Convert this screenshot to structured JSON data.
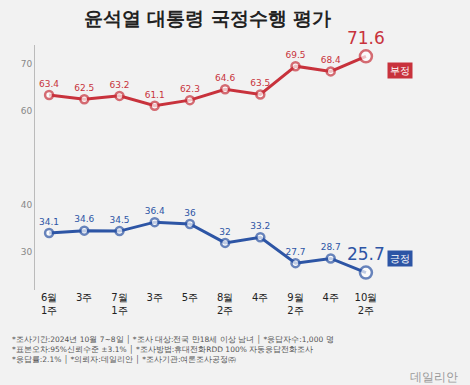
{
  "chart_data": {
    "type": "line",
    "title": "윤석열 대통령 국정수행 평가",
    "categories": [
      "6월 1주",
      "3주",
      "7월 1주",
      "3주",
      "5주",
      "8월 2주",
      "4주",
      "9월 2주",
      "4주",
      "10월 2주"
    ],
    "series": [
      {
        "name": "부정",
        "color": "#c8323c",
        "values": [
          63.4,
          62.5,
          63.2,
          61.1,
          62.3,
          64.6,
          63.5,
          69.5,
          68.4,
          71.6
        ]
      },
      {
        "name": "긍정",
        "color": "#2d55a5",
        "values": [
          34.1,
          34.6,
          34.5,
          36.4,
          36.0,
          32.0,
          33.2,
          27.7,
          28.7,
          25.7
        ]
      }
    ],
    "ylim": [
      22,
      74
    ],
    "yticks": [
      30,
      40,
      60,
      70
    ],
    "grid": false,
    "data_labels": true,
    "marker": "circle",
    "annotations": [
      "*조사기간:2024년 10월 7~8일 │ *조사 대상:전국 만18세 이상 남녀 │ *응답자수:1,000 명",
      "*표본오차:95%신뢰수준 ±3.1% │ *조사방법:휴대전화RDD 100% 자동응답전화조사",
      "*응답률:2.1% │ *의뢰자:데일리안 │ *조사기관:여론조사공정㈜"
    ],
    "source": "데일리안"
  }
}
